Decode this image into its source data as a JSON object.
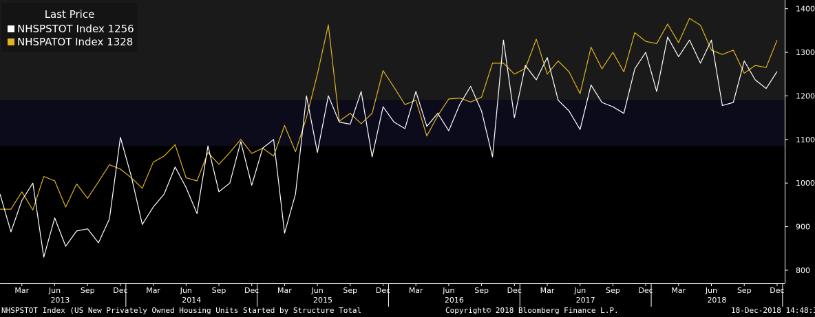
{
  "legend": {
    "title": "Last Price",
    "series": [
      {
        "label": "NHSPSTOT Index 1256",
        "color": "#ffffff"
      },
      {
        "label": "NHSPATOT Index 1328",
        "color": "#e0b420"
      }
    ]
  },
  "footer": {
    "left": "NHSPSTOT Index (US New Privately Owned Housing Units Started by Structure Total",
    "center": "Copyright© 2018 Bloomberg Finance L.P.",
    "right": "18-Dec-2018 14:48:30"
  },
  "chart_data": {
    "type": "line",
    "x_start": "2013-01",
    "x_end": "2018-11",
    "ylim": [
      770,
      1420
    ],
    "yticks": [
      800,
      900,
      1000,
      1100,
      1200,
      1300,
      1400
    ],
    "month_labels": [
      "Mar",
      "Jun",
      "Sep",
      "Dec",
      "Mar",
      "Jun",
      "Sep",
      "Dec",
      "Mar",
      "Jun",
      "Sep",
      "Dec",
      "Mar",
      "Jun",
      "Sep",
      "Dec",
      "Mar",
      "Jun",
      "Sep",
      "Dec",
      "Mar",
      "Jun",
      "Sep",
      "Dec"
    ],
    "year_labels": [
      "2013",
      "2014",
      "2015",
      "2016",
      "2017",
      "2018"
    ],
    "bands": [
      {
        "from": 1190,
        "to": 1420,
        "color": "#1a1a1a"
      },
      {
        "from": 1085,
        "to": 1190,
        "color": "#0b0b1c"
      }
    ],
    "series": [
      {
        "name": "NHSPSTOT Index",
        "color": "#ffffff",
        "values": [
          975,
          888,
          960,
          1000,
          830,
          920,
          855,
          890,
          895,
          863,
          918,
          1105,
          1015,
          905,
          945,
          975,
          1037,
          990,
          930,
          1085,
          980,
          1000,
          1095,
          995,
          1080,
          1100,
          885,
          975,
          1200,
          1070,
          1200,
          1140,
          1135,
          1210,
          1060,
          1175,
          1140,
          1125,
          1210,
          1130,
          1160,
          1120,
          1180,
          1222,
          1165,
          1060,
          1328,
          1150,
          1270,
          1237,
          1288,
          1190,
          1165,
          1123,
          1225,
          1185,
          1175,
          1160,
          1262,
          1300,
          1210,
          1335,
          1290,
          1328,
          1275,
          1328,
          1178,
          1185,
          1280,
          1237,
          1217,
          1256
        ]
      },
      {
        "name": "NHSPATOT Index",
        "color": "#e0b420",
        "values": [
          940,
          940,
          980,
          938,
          1015,
          1005,
          945,
          998,
          965,
          1003,
          1042,
          1032,
          1012,
          988,
          1048,
          1062,
          1088,
          1012,
          1005,
          1070,
          1043,
          1070,
          1100,
          1068,
          1080,
          1062,
          1132,
          1072,
          1150,
          1250,
          1363,
          1142,
          1160,
          1136,
          1160,
          1258,
          1220,
          1180,
          1190,
          1108,
          1155,
          1193,
          1195,
          1186,
          1197,
          1275,
          1275,
          1250,
          1263,
          1330,
          1250,
          1280,
          1255,
          1205,
          1312,
          1262,
          1300,
          1255,
          1345,
          1325,
          1320,
          1365,
          1322,
          1378,
          1362,
          1305,
          1295,
          1305,
          1252,
          1270,
          1265,
          1328
        ]
      }
    ]
  }
}
